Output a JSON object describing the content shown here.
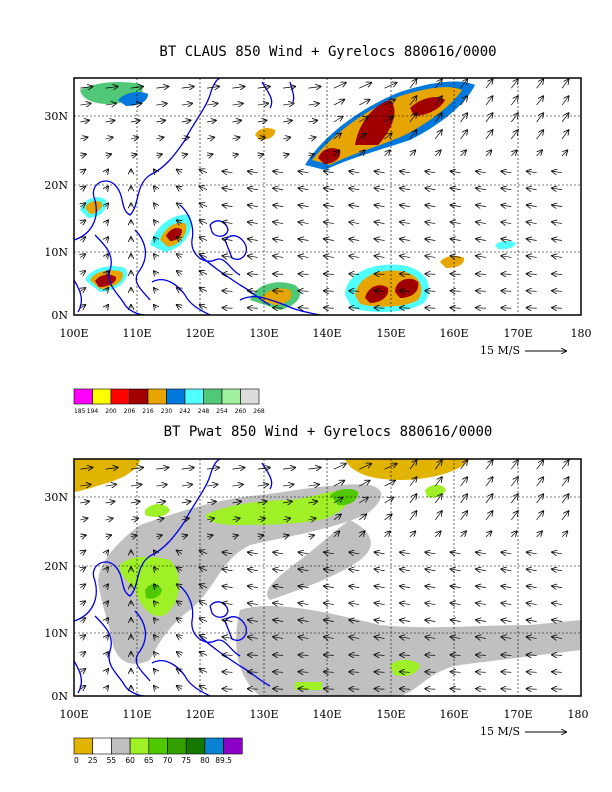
{
  "panels": [
    {
      "title": "BT CLAUS 850 Wind + Gyrelocs 880616/0000",
      "x_labels": [
        "100E",
        "110E",
        "120E",
        "130E",
        "140E",
        "150E",
        "160E",
        "170E",
        "180"
      ],
      "y_labels": [
        "30N",
        "20N",
        "10N",
        "0N"
      ],
      "scale_label": "15 M/S",
      "legend": {
        "colors": [
          "#ff00ff",
          "#ffff00",
          "#ff0000",
          "#a00000",
          "#e6a500",
          "#0078dc",
          "#50ffff",
          "#50c878",
          "#a0f0a0",
          "#dcdcdc"
        ],
        "labels": [
          "185",
          "194",
          "200",
          "206",
          "216",
          "230",
          "242",
          "248",
          "254",
          "260",
          "268"
        ]
      }
    },
    {
      "title": "BT Pwat 850 Wind + Gyrelocs 880616/0000",
      "x_labels": [
        "100E",
        "110E",
        "120E",
        "130E",
        "140E",
        "150E",
        "160E",
        "170E",
        "180"
      ],
      "y_labels": [
        "30N",
        "20N",
        "10N",
        "0N"
      ],
      "scale_label": "15 M/S",
      "legend": {
        "colors": [
          "#e0b400",
          "#ffffff",
          "#c0c0c0",
          "#a0f028",
          "#50c800",
          "#32a000",
          "#147800",
          "#0a82d2",
          "#8c00c8"
        ],
        "labels": [
          "0",
          "25",
          "55",
          "60",
          "65",
          "70",
          "75",
          "80",
          "89.5"
        ]
      }
    }
  ]
}
